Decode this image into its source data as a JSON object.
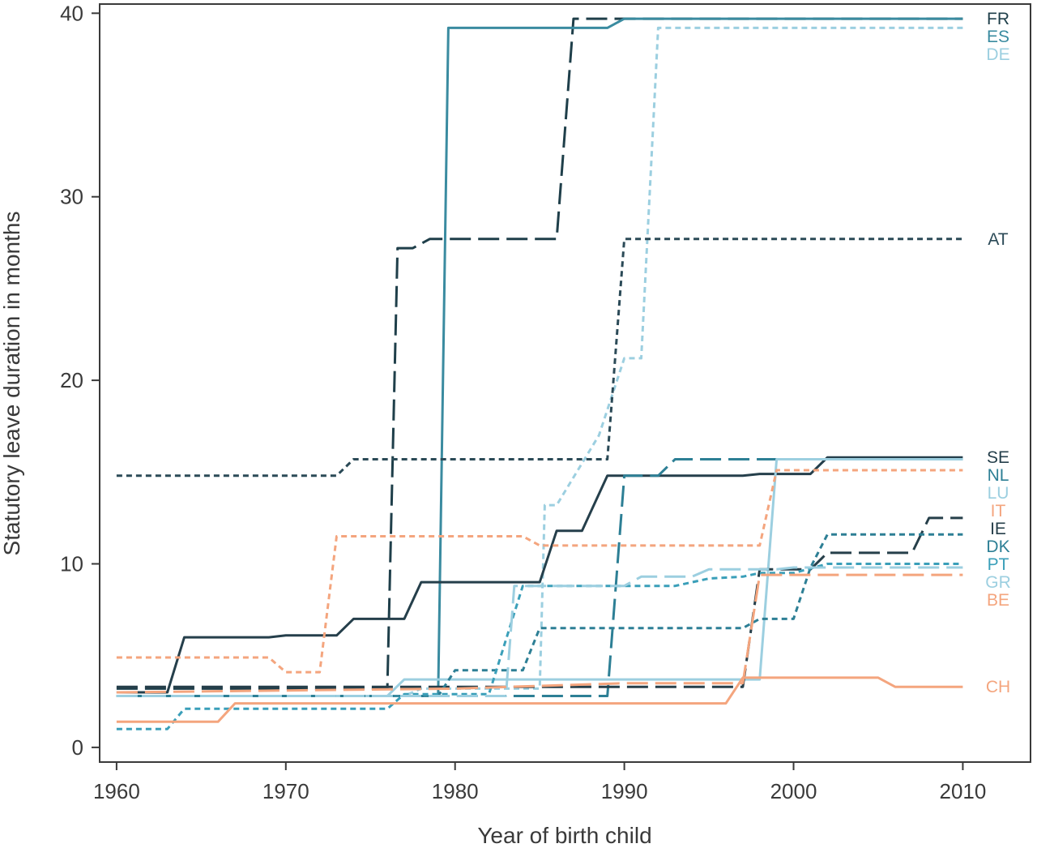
{
  "chart_data": {
    "type": "line",
    "title": "",
    "xlabel": "Year of birth child",
    "ylabel": "Statutory leave duration in months",
    "xlim": [
      1959,
      2014
    ],
    "ylim": [
      -0.8,
      40.5
    ],
    "x_ticks": [
      1960,
      1970,
      1980,
      1990,
      2000,
      2010
    ],
    "y_ticks": [
      0,
      10,
      20,
      30,
      40
    ],
    "grid": false,
    "legend": "none",
    "series": [
      {
        "name": "FR",
        "color": "#1f3f4a",
        "dash": "long",
        "points": [
          [
            1960,
            3.2
          ],
          [
            1976,
            3.2
          ],
          [
            1976.6,
            27.2
          ],
          [
            1977.5,
            27.2
          ],
          [
            1978.5,
            27.7
          ],
          [
            1986,
            27.7
          ],
          [
            1987,
            39.7
          ],
          [
            2010,
            39.7
          ]
        ]
      },
      {
        "name": "ES",
        "color": "#3a8ba0",
        "dash": "solid",
        "points": [
          [
            1960,
            2.8
          ],
          [
            1979,
            2.8
          ],
          [
            1979.6,
            39.2
          ],
          [
            1989,
            39.2
          ],
          [
            1990,
            39.7
          ],
          [
            2010,
            39.7
          ]
        ]
      },
      {
        "name": "DE",
        "color": "#9ccfe0",
        "dash": "short",
        "points": [
          [
            1960,
            2.8
          ],
          [
            1977,
            2.8
          ],
          [
            1978,
            3.2
          ],
          [
            1985,
            3.2
          ],
          [
            1985.3,
            13.2
          ],
          [
            1986,
            13.2
          ],
          [
            1988.5,
            17
          ],
          [
            1990,
            21.2
          ],
          [
            1991,
            21.2
          ],
          [
            1992,
            39.2
          ],
          [
            2010,
            39.2
          ]
        ]
      },
      {
        "name": "AT",
        "color": "#2b4a57",
        "dash": "short",
        "points": [
          [
            1960,
            14.8
          ],
          [
            1973,
            14.8
          ],
          [
            1974,
            15.7
          ],
          [
            1989,
            15.7
          ],
          [
            1990,
            27.7
          ],
          [
            2010,
            27.7
          ]
        ]
      },
      {
        "name": "SE",
        "color": "#253f4b",
        "dash": "solid",
        "points": [
          [
            1960,
            3
          ],
          [
            1963,
            3
          ],
          [
            1964,
            6
          ],
          [
            1969,
            6
          ],
          [
            1970,
            6.1
          ],
          [
            1973,
            6.1
          ],
          [
            1974,
            7
          ],
          [
            1977,
            7
          ],
          [
            1978,
            9
          ],
          [
            1985,
            9
          ],
          [
            1986,
            11.8
          ],
          [
            1987.5,
            11.8
          ],
          [
            1989,
            14.8
          ],
          [
            1997,
            14.8
          ],
          [
            1998,
            14.9
          ],
          [
            2001,
            14.9
          ],
          [
            2002,
            15.8
          ],
          [
            2010,
            15.8
          ]
        ]
      },
      {
        "name": "NL",
        "color": "#2d7f95",
        "dash": "long",
        "points": [
          [
            1960,
            2.8
          ],
          [
            1989,
            2.8
          ],
          [
            1990,
            14.8
          ],
          [
            1992,
            14.8
          ],
          [
            1993,
            15.7
          ],
          [
            2010,
            15.7
          ]
        ]
      },
      {
        "name": "LU",
        "color": "#9ccfe0",
        "dash": "solid",
        "points": [
          [
            1960,
            2.8
          ],
          [
            1976,
            2.8
          ],
          [
            1977,
            3.7
          ],
          [
            1998,
            3.7
          ],
          [
            1999,
            15.7
          ],
          [
            2010,
            15.7
          ]
        ]
      },
      {
        "name": "IT",
        "color": "#f4a57e",
        "dash": "short",
        "points": [
          [
            1960,
            4.9
          ],
          [
            1969,
            4.9
          ],
          [
            1970,
            4.1
          ],
          [
            1972,
            4.1
          ],
          [
            1973,
            11.5
          ],
          [
            1984,
            11.5
          ],
          [
            1985,
            11
          ],
          [
            1998,
            11
          ],
          [
            1999,
            15.1
          ],
          [
            2010,
            15.1
          ]
        ]
      },
      {
        "name": "IE",
        "color": "#263f4a",
        "dash": "long",
        "points": [
          [
            1960,
            3.3
          ],
          [
            1997,
            3.3
          ],
          [
            1998,
            9.7
          ],
          [
            2001,
            9.7
          ],
          [
            2002,
            10.6
          ],
          [
            2006,
            10.6
          ],
          [
            2007,
            10.6
          ],
          [
            2008,
            12.5
          ],
          [
            2010,
            12.5
          ]
        ]
      },
      {
        "name": "DK",
        "color": "#2d7f95",
        "dash": "short",
        "points": [
          [
            1960,
            2.8
          ],
          [
            1979,
            2.8
          ],
          [
            1980,
            4.2
          ],
          [
            1983,
            4.2
          ],
          [
            1984,
            4.2
          ],
          [
            1985,
            6.5
          ],
          [
            1997,
            6.5
          ],
          [
            1998,
            7
          ],
          [
            2000,
            7
          ],
          [
            2001,
            9.8
          ],
          [
            2002,
            11.6
          ],
          [
            2010,
            11.6
          ]
        ]
      },
      {
        "name": "PT",
        "color": "#3a9fb9",
        "dash": "short",
        "points": [
          [
            1960,
            1
          ],
          [
            1963,
            1
          ],
          [
            1964,
            2.1
          ],
          [
            1976,
            2.1
          ],
          [
            1977,
            2.9
          ],
          [
            1982,
            2.9
          ],
          [
            1984,
            8.8
          ],
          [
            1993,
            8.8
          ],
          [
            1995,
            9.2
          ],
          [
            1997,
            9.3
          ],
          [
            1998,
            9.5
          ],
          [
            2000,
            9.5
          ],
          [
            2002,
            10
          ],
          [
            2010,
            10
          ]
        ]
      },
      {
        "name": "GR",
        "color": "#9ccfe0",
        "dash": "long",
        "points": [
          [
            1960,
            2.8
          ],
          [
            1983,
            2.8
          ],
          [
            1983.5,
            8.8
          ],
          [
            1990,
            8.8
          ],
          [
            1991,
            9.3
          ],
          [
            1994,
            9.3
          ],
          [
            1995,
            9.7
          ],
          [
            1999,
            9.7
          ],
          [
            2000,
            9.8
          ],
          [
            2010,
            9.8
          ]
        ]
      },
      {
        "name": "BE",
        "color": "#f4a57e",
        "dash": "long",
        "points": [
          [
            1960,
            3
          ],
          [
            1980,
            3.2
          ],
          [
            1990,
            3.5
          ],
          [
            1997,
            3.5
          ],
          [
            1998,
            9.4
          ],
          [
            2010,
            9.4
          ]
        ]
      },
      {
        "name": "CH",
        "color": "#f4a57e",
        "dash": "solid",
        "points": [
          [
            1960,
            1.4
          ],
          [
            1966,
            1.4
          ],
          [
            1967,
            2.4
          ],
          [
            1996,
            2.4
          ],
          [
            1997,
            3.8
          ],
          [
            2005,
            3.8
          ],
          [
            2006,
            3.3
          ],
          [
            2010,
            3.3
          ]
        ]
      }
    ]
  }
}
